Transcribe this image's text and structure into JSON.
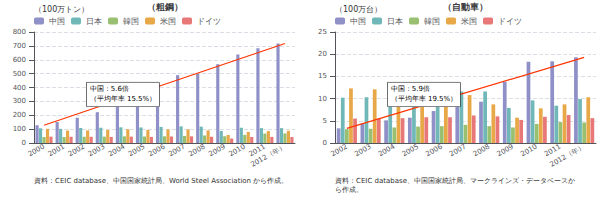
{
  "chart_data": [
    {
      "type": "bar",
      "title": "（粗鋼）",
      "ylabel": "（100万トン）",
      "categories": [
        "2000",
        "2001",
        "2002",
        "2003",
        "2004",
        "2005",
        "2006",
        "2007",
        "2008",
        "2009",
        "2010",
        "2011",
        "2012（年）"
      ],
      "series": [
        {
          "name": "中国",
          "color": "#9090c8",
          "values": [
            128,
            151,
            182,
            222,
            282,
            353,
            419,
            489,
            500,
            568,
            638,
            683,
            717
          ]
        },
        {
          "name": "日本",
          "color": "#70b8b8",
          "values": [
            106,
            102,
            108,
            110,
            113,
            112,
            116,
            120,
            118,
            87,
            110,
            107,
            107
          ]
        },
        {
          "name": "韓国",
          "color": "#98c070",
          "values": [
            43,
            43,
            45,
            46,
            48,
            47,
            48,
            51,
            54,
            49,
            58,
            68,
            69
          ]
        },
        {
          "name": "米国",
          "color": "#e8a848",
          "values": [
            102,
            90,
            91,
            94,
            99,
            94,
            98,
            98,
            91,
            58,
            80,
            86,
            88
          ]
        },
        {
          "name": "ドイツ",
          "color": "#e87878",
          "values": [
            46,
            45,
            45,
            44,
            46,
            44,
            47,
            48,
            45,
            32,
            43,
            44,
            43
          ]
        },
        {
          "type": "line",
          "color": "#ff3300",
          "x": [
            "2000",
            "2012（年）"
          ],
          "values": [
            128,
            717
          ]
        }
      ],
      "ylim": [
        0,
        800
      ],
      "yticks": [
        0,
        100,
        200,
        300,
        400,
        500,
        600,
        700,
        800
      ],
      "grid": true,
      "legend": "upper left",
      "annotation": "中国：5.6倍\n（平均年率 15.5%）",
      "source": [
        "資料：CEIC database、中国国家統計局、World Steel Association から作成。"
      ]
    },
    {
      "type": "bar",
      "title": "（自動車）",
      "ylabel": "（100万台）",
      "categories": [
        "2002",
        "2003",
        "2004",
        "2005",
        "2006",
        "2007",
        "2008",
        "2009",
        "2010",
        "2011",
        "2012（年）"
      ],
      "series": [
        {
          "name": "中国",
          "color": "#9090c8",
          "values": [
            3.3,
            4.4,
            5.1,
            5.7,
            7.2,
            8.9,
            9.3,
            13.8,
            18.3,
            18.4,
            19.3
          ]
        },
        {
          "name": "日本",
          "color": "#70b8b8",
          "values": [
            10.2,
            10.3,
            10.5,
            10.8,
            11.5,
            11.6,
            11.6,
            7.9,
            9.6,
            8.4,
            9.9
          ]
        },
        {
          "name": "韓国",
          "color": "#98c070",
          "values": [
            3.1,
            3.2,
            3.5,
            3.7,
            3.8,
            4.1,
            3.8,
            3.5,
            4.3,
            4.7,
            4.6
          ]
        },
        {
          "name": "米国",
          "color": "#e8a848",
          "values": [
            12.3,
            12.1,
            11.9,
            11.9,
            11.3,
            10.8,
            8.7,
            5.7,
            7.8,
            8.7,
            10.3
          ]
        },
        {
          "name": "ドイツ",
          "color": "#e87878",
          "values": [
            5.5,
            5.5,
            5.6,
            5.8,
            5.8,
            6.2,
            6.0,
            5.2,
            5.9,
            6.3,
            5.6
          ]
        },
        {
          "type": "line",
          "color": "#ff3300",
          "x": [
            "2002",
            "2012（年）"
          ],
          "values": [
            3.3,
            19.3
          ]
        }
      ],
      "ylim": [
        0,
        25
      ],
      "yticks": [
        0,
        5,
        10,
        15,
        20,
        25
      ],
      "grid": true,
      "legend": "upper left",
      "annotation": "中国：5.9倍\n（平均年率 19.5%）",
      "source": [
        "資料：CEIC database、中国国家統計局、マークラインズ・データベースか",
        "ら作成。"
      ]
    }
  ]
}
